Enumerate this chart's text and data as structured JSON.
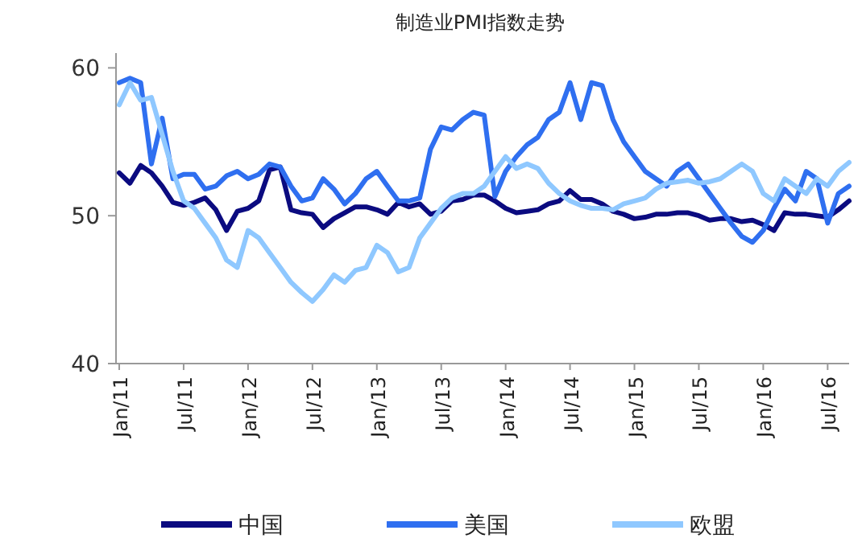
{
  "chart_data": {
    "type": "line",
    "title": "制造业PMI指数走势",
    "x": [
      "2011-01",
      "2011-02",
      "2011-03",
      "2011-04",
      "2011-05",
      "2011-06",
      "2011-07",
      "2011-08",
      "2011-09",
      "2011-10",
      "2011-11",
      "2011-12",
      "2012-01",
      "2012-02",
      "2012-03",
      "2012-04",
      "2012-05",
      "2012-06",
      "2012-07",
      "2012-08",
      "2012-09",
      "2012-10",
      "2012-11",
      "2012-12",
      "2013-01",
      "2013-02",
      "2013-03",
      "2013-04",
      "2013-05",
      "2013-06",
      "2013-07",
      "2013-08",
      "2013-09",
      "2013-10",
      "2013-11",
      "2013-12",
      "2014-01",
      "2014-02",
      "2014-03",
      "2014-04",
      "2014-05",
      "2014-06",
      "2014-07",
      "2014-08",
      "2014-09",
      "2014-10",
      "2014-11",
      "2014-12",
      "2015-01",
      "2015-02",
      "2015-03",
      "2015-04",
      "2015-05",
      "2015-06",
      "2015-07",
      "2015-08",
      "2015-09",
      "2015-10",
      "2015-11",
      "2015-12",
      "2016-01",
      "2016-02",
      "2016-03",
      "2016-04",
      "2016-05",
      "2016-06",
      "2016-07",
      "2016-08",
      "2016-09"
    ],
    "series": [
      {
        "name": "中国",
        "color": "#0b0b80",
        "values": [
          52.9,
          52.2,
          53.4,
          52.9,
          52.0,
          50.9,
          50.7,
          50.9,
          51.2,
          50.4,
          49.0,
          50.3,
          50.5,
          51.0,
          53.1,
          53.3,
          50.4,
          50.2,
          50.1,
          49.2,
          49.8,
          50.2,
          50.6,
          50.6,
          50.4,
          50.1,
          50.9,
          50.6,
          50.8,
          50.1,
          50.3,
          51.0,
          51.1,
          51.4,
          51.4,
          51.0,
          50.5,
          50.2,
          50.3,
          50.4,
          50.8,
          51.0,
          51.7,
          51.1,
          51.1,
          50.8,
          50.3,
          50.1,
          49.8,
          49.9,
          50.1,
          50.1,
          50.2,
          50.2,
          50.0,
          49.7,
          49.8,
          49.8,
          49.6,
          49.7,
          49.4,
          49.0,
          50.2,
          50.1,
          50.1,
          50.0,
          49.9,
          50.4,
          51.0
        ]
      },
      {
        "name": "美国",
        "color": "#2f6ff0",
        "values": [
          59.0,
          59.3,
          59.0,
          53.5,
          56.6,
          52.5,
          52.8,
          52.8,
          51.8,
          52.0,
          52.7,
          53.0,
          52.5,
          52.8,
          53.5,
          53.3,
          52.0,
          51.0,
          51.2,
          52.5,
          51.8,
          50.8,
          51.5,
          52.5,
          53.0,
          52.0,
          51.0,
          51.0,
          51.2,
          54.5,
          56.0,
          55.8,
          56.5,
          57.0,
          56.8,
          51.3,
          53.0,
          54.0,
          54.8,
          55.3,
          56.5,
          57.0,
          59.0,
          56.5,
          59.0,
          58.8,
          56.5,
          55.0,
          54.0,
          53.0,
          52.5,
          52.0,
          53.0,
          53.5,
          52.5,
          51.5,
          50.5,
          49.5,
          48.6,
          48.2,
          49.0,
          50.5,
          51.8,
          51.0,
          53.0,
          52.5,
          49.5,
          51.5,
          52.0
        ]
      },
      {
        "name": "欧盟",
        "color": "#8fc8ff",
        "values": [
          57.5,
          59.0,
          57.8,
          58.0,
          55.5,
          53.0,
          51.0,
          50.5,
          49.5,
          48.5,
          47.0,
          46.5,
          49.0,
          48.5,
          47.5,
          46.5,
          45.5,
          44.8,
          44.2,
          45.0,
          46.0,
          45.5,
          46.3,
          46.5,
          48.0,
          47.5,
          46.2,
          46.5,
          48.5,
          49.5,
          50.5,
          51.2,
          51.5,
          51.5,
          52.0,
          53.0,
          54.0,
          53.2,
          53.5,
          53.2,
          52.2,
          51.5,
          51.0,
          50.7,
          50.5,
          50.5,
          50.4,
          50.8,
          51.0,
          51.2,
          51.8,
          52.2,
          52.3,
          52.4,
          52.2,
          52.3,
          52.5,
          53.0,
          53.5,
          53.0,
          51.5,
          51.0,
          52.5,
          52.0,
          51.5,
          52.5,
          52.0,
          53.0,
          53.6
        ]
      }
    ],
    "xlim": [
      "2011-01",
      "2016-09"
    ],
    "xticks": [
      {
        "value": "2011-01",
        "label": "Jan/11"
      },
      {
        "value": "2011-07",
        "label": "Jul/11"
      },
      {
        "value": "2012-01",
        "label": "Jan/12"
      },
      {
        "value": "2012-07",
        "label": "Jul/12"
      },
      {
        "value": "2013-01",
        "label": "Jan/13"
      },
      {
        "value": "2013-07",
        "label": "Jul/13"
      },
      {
        "value": "2014-01",
        "label": "Jan/14"
      },
      {
        "value": "2014-07",
        "label": "Jul/14"
      },
      {
        "value": "2015-01",
        "label": "Jan/15"
      },
      {
        "value": "2015-07",
        "label": "Jul/15"
      },
      {
        "value": "2016-01",
        "label": "Jan/16"
      },
      {
        "value": "2016-07",
        "label": "Jul/16"
      }
    ],
    "ylim": [
      40,
      61
    ],
    "yticks": [
      40,
      50,
      60
    ],
    "grid": false,
    "legend": "bottom"
  }
}
